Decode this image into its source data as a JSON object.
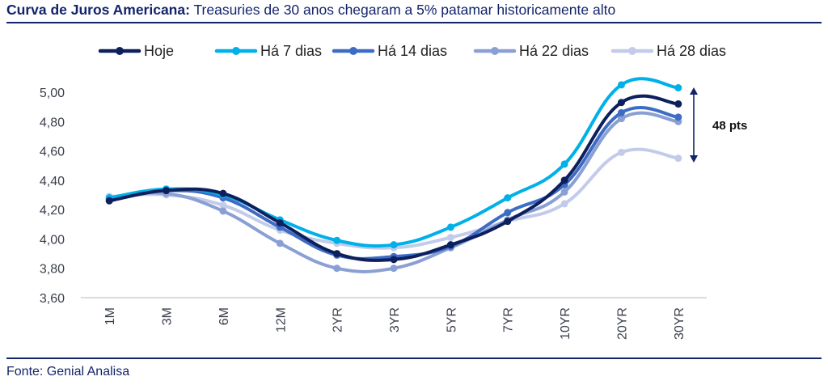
{
  "header": {
    "title_bold": "Curva de Juros Americana:",
    "title_rest": "Treasuries de 30 anos chegaram a 5% patamar historicamente alto"
  },
  "footer": {
    "source": "Fonte: Genial Analisa"
  },
  "chart_data": {
    "type": "line",
    "title": "",
    "xlabel": "",
    "ylabel": "",
    "categories": [
      "1M",
      "3M",
      "6M",
      "12M",
      "2YR",
      "3YR",
      "5YR",
      "7YR",
      "10YR",
      "20YR",
      "30YR"
    ],
    "yticks": [
      "3,60",
      "3,80",
      "4,00",
      "4,20",
      "4,40",
      "4,60",
      "4,80",
      "5,00"
    ],
    "ylim": [
      3.6,
      5.0
    ],
    "grid": false,
    "legend_position": "top",
    "series": [
      {
        "name": "Hoje",
        "color": "#0d1f5c",
        "values": [
          4.26,
          4.33,
          4.31,
          4.11,
          3.9,
          3.86,
          3.96,
          4.12,
          4.4,
          4.93,
          4.92
        ]
      },
      {
        "name": "Há 7 dias",
        "color": "#00b0e8",
        "values": [
          4.28,
          4.34,
          4.3,
          4.13,
          3.99,
          3.96,
          4.08,
          4.28,
          4.51,
          5.05,
          5.03
        ]
      },
      {
        "name": "Há 14 dias",
        "color": "#3d6cc4",
        "values": [
          4.27,
          4.33,
          4.28,
          4.08,
          3.89,
          3.88,
          3.95,
          4.18,
          4.37,
          4.86,
          4.83
        ]
      },
      {
        "name": "Há 22 dias",
        "color": "#8a9fd4",
        "values": [
          4.28,
          4.31,
          4.19,
          3.97,
          3.8,
          3.8,
          3.94,
          4.13,
          4.32,
          4.82,
          4.8
        ]
      },
      {
        "name": "Há 28 dias",
        "color": "#c3cbea",
        "values": [
          4.29,
          4.3,
          4.23,
          4.06,
          3.97,
          3.94,
          4.01,
          4.12,
          4.24,
          4.59,
          4.55
        ]
      }
    ],
    "annotation": {
      "label": "48 pts",
      "from": 4.55,
      "to": 5.03
    }
  }
}
